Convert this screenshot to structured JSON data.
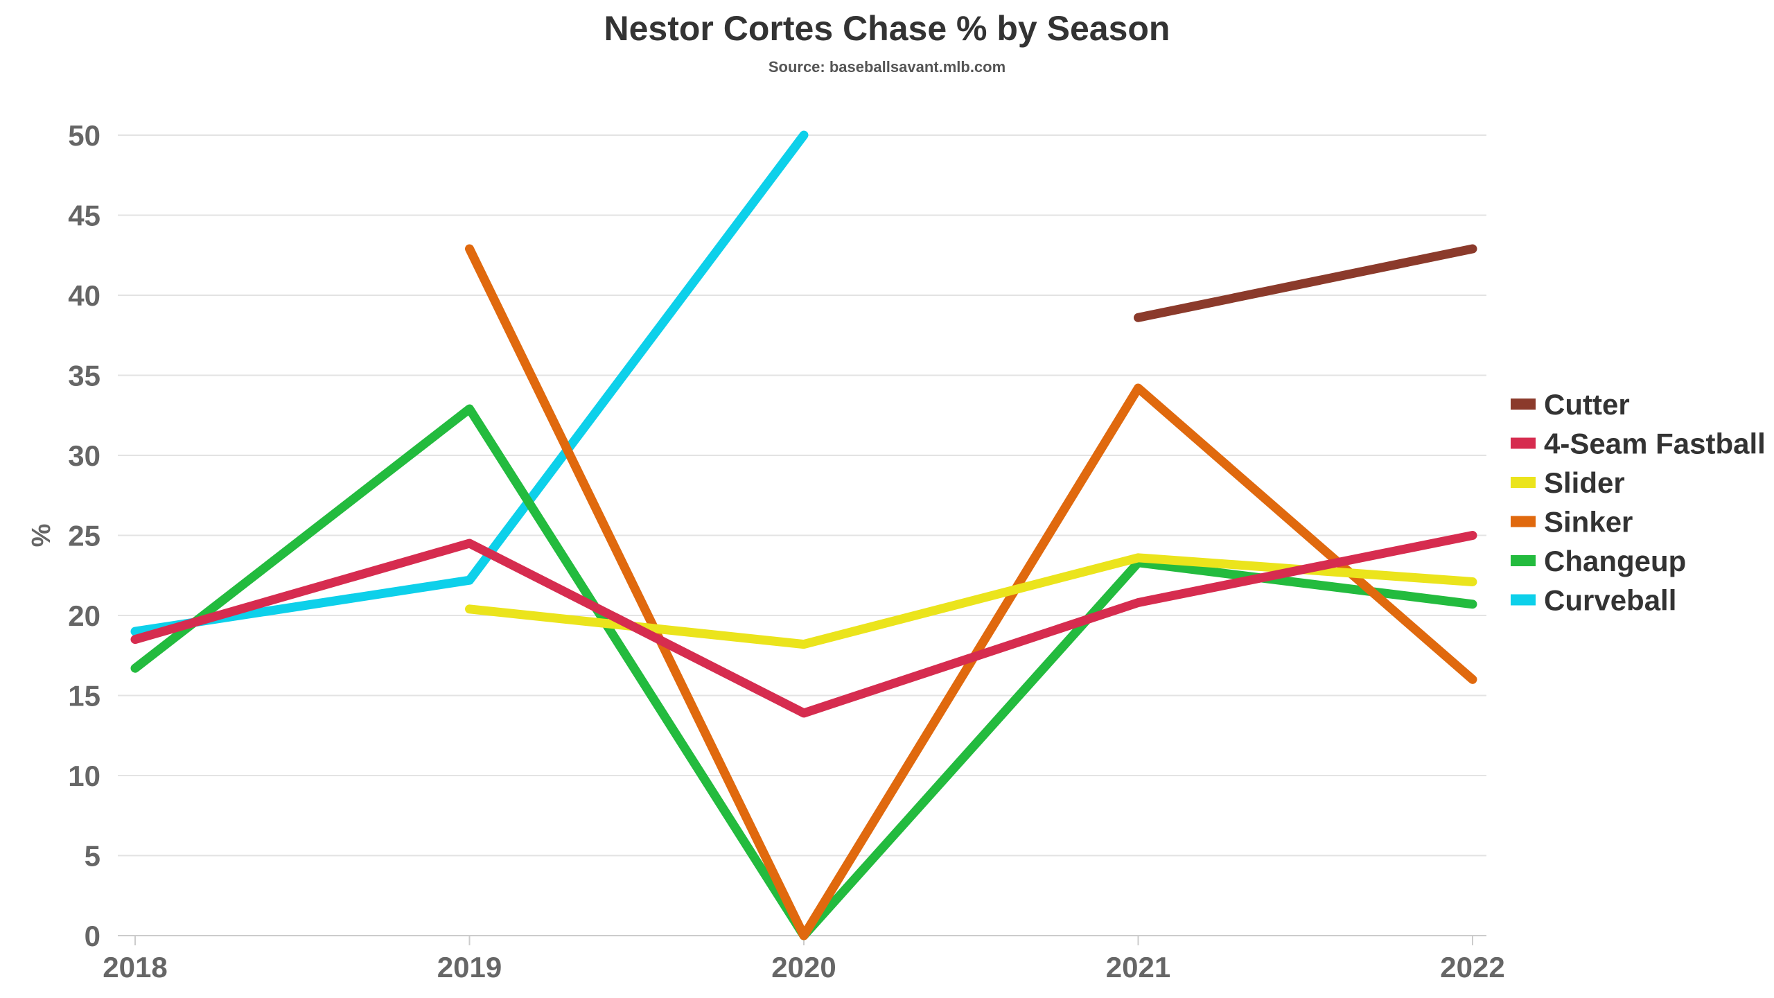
{
  "chart_data": {
    "type": "line",
    "title": "Nestor Cortes Chase % by Season",
    "subtitle": "Source: baseballsavant.mlb.com",
    "xlabel": "",
    "ylabel": "%",
    "x": [
      "2018",
      "2019",
      "2020",
      "2021",
      "2022"
    ],
    "ylim": [
      0,
      50
    ],
    "yticks": [
      0,
      5,
      10,
      15,
      20,
      25,
      30,
      35,
      40,
      45,
      50
    ],
    "grid": true,
    "legend_position": "right",
    "series": [
      {
        "name": "Cutter",
        "color": "#8b3a2b",
        "values": [
          null,
          null,
          null,
          38.6,
          42.9
        ]
      },
      {
        "name": "4-Seam Fastball",
        "color": "#d62c4f",
        "values": [
          18.5,
          24.5,
          13.9,
          20.8,
          25.0
        ]
      },
      {
        "name": "Slider",
        "color": "#ebe41c",
        "values": [
          null,
          20.4,
          18.2,
          23.6,
          22.1
        ]
      },
      {
        "name": "Sinker",
        "color": "#e0690e",
        "values": [
          null,
          42.9,
          0,
          34.2,
          16.0
        ]
      },
      {
        "name": "Changeup",
        "color": "#23bb3e",
        "values": [
          16.7,
          32.9,
          0,
          23.3,
          20.7
        ]
      },
      {
        "name": "Curveball",
        "color": "#0dd0ea",
        "values": [
          19.0,
          22.2,
          50.0,
          null,
          null
        ]
      }
    ]
  }
}
